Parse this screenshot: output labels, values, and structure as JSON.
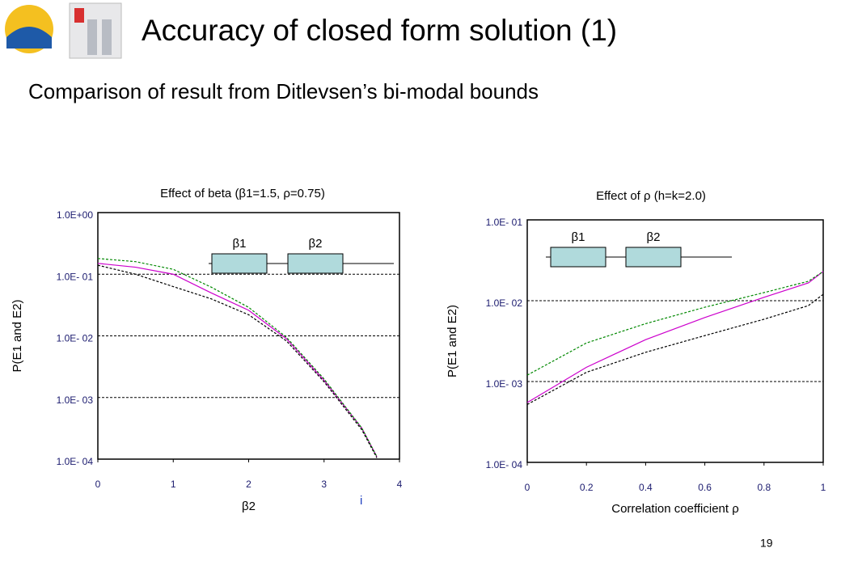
{
  "slide": {
    "title": "Accuracy of closed form solution (1)",
    "subtitle": "Comparison of result from Ditlevsen’s bi-modal bounds",
    "page_number": "19"
  },
  "chart_data": [
    {
      "type": "line",
      "title": "Effect of beta (β1=1.5, ρ=0.75)",
      "xlabel": "β2",
      "ylabel": "P(E1 and E2)",
      "annotations": [
        "β1",
        "β2",
        "i"
      ],
      "x": [
        0,
        0.5,
        1,
        1.5,
        2,
        2.5,
        3,
        3.5,
        3.7
      ],
      "series": [
        {
          "color": "#cc00cc",
          "dashed": false,
          "values": [
            0.15,
            0.13,
            0.1,
            0.05,
            0.026,
            0.009,
            0.0019,
            0.00032,
            0.00011
          ]
        },
        {
          "color": "#008800",
          "dashed": true,
          "values": [
            0.18,
            0.16,
            0.12,
            0.062,
            0.029,
            0.0095,
            0.002,
            0.00032,
            0.00011
          ]
        },
        {
          "color": "#000000",
          "dashed": true,
          "values": [
            0.14,
            0.1,
            0.063,
            0.04,
            0.022,
            0.0083,
            0.0018,
            0.0003,
            0.000105
          ]
        }
      ],
      "xlim": [
        0,
        4
      ],
      "xticks": [
        0,
        1,
        2,
        3,
        4
      ],
      "ylim": [
        0.0001,
        1
      ],
      "yticks": [
        {
          "value": 0.0001,
          "label": "1.0E- 04"
        },
        {
          "value": 0.001,
          "label": "1.0E- 03"
        },
        {
          "value": 0.01,
          "label": "1.0E- 02"
        },
        {
          "value": 0.1,
          "label": "1.0E- 01"
        },
        {
          "value": 1,
          "label": "1.0E+00"
        }
      ],
      "log_y": true,
      "grid": true
    },
    {
      "type": "line",
      "title": "Effect of ρ (h=k=2.0)",
      "xlabel": "Correlation coefficient ρ",
      "ylabel": "P(E1 and E2)",
      "annotations": [
        "β1",
        "β2"
      ],
      "x": [
        0,
        0.2,
        0.4,
        0.6,
        0.8,
        0.95,
        1
      ],
      "series": [
        {
          "color": "#cc00cc",
          "dashed": false,
          "values": [
            0.00055,
            0.0015,
            0.0033,
            0.0062,
            0.011,
            0.0166,
            0.023
          ]
        },
        {
          "color": "#008800",
          "dashed": true,
          "values": [
            0.0012,
            0.003,
            0.0052,
            0.0083,
            0.0126,
            0.0174,
            0.023
          ]
        },
        {
          "color": "#000000",
          "dashed": true,
          "values": [
            0.00052,
            0.0013,
            0.0023,
            0.0037,
            0.0059,
            0.0087,
            0.012
          ]
        }
      ],
      "xlim": [
        0,
        1
      ],
      "xticks": [
        0,
        0.2,
        0.4,
        0.6,
        0.8,
        1
      ],
      "ylim": [
        0.0001,
        0.1
      ],
      "yticks": [
        {
          "value": 0.0001,
          "label": "1.0E- 04"
        },
        {
          "value": 0.001,
          "label": "1.0E- 03"
        },
        {
          "value": 0.01,
          "label": "1.0E- 02"
        },
        {
          "value": 0.1,
          "label": "1.0E- 01"
        }
      ],
      "log_y": true,
      "grid": true
    }
  ]
}
